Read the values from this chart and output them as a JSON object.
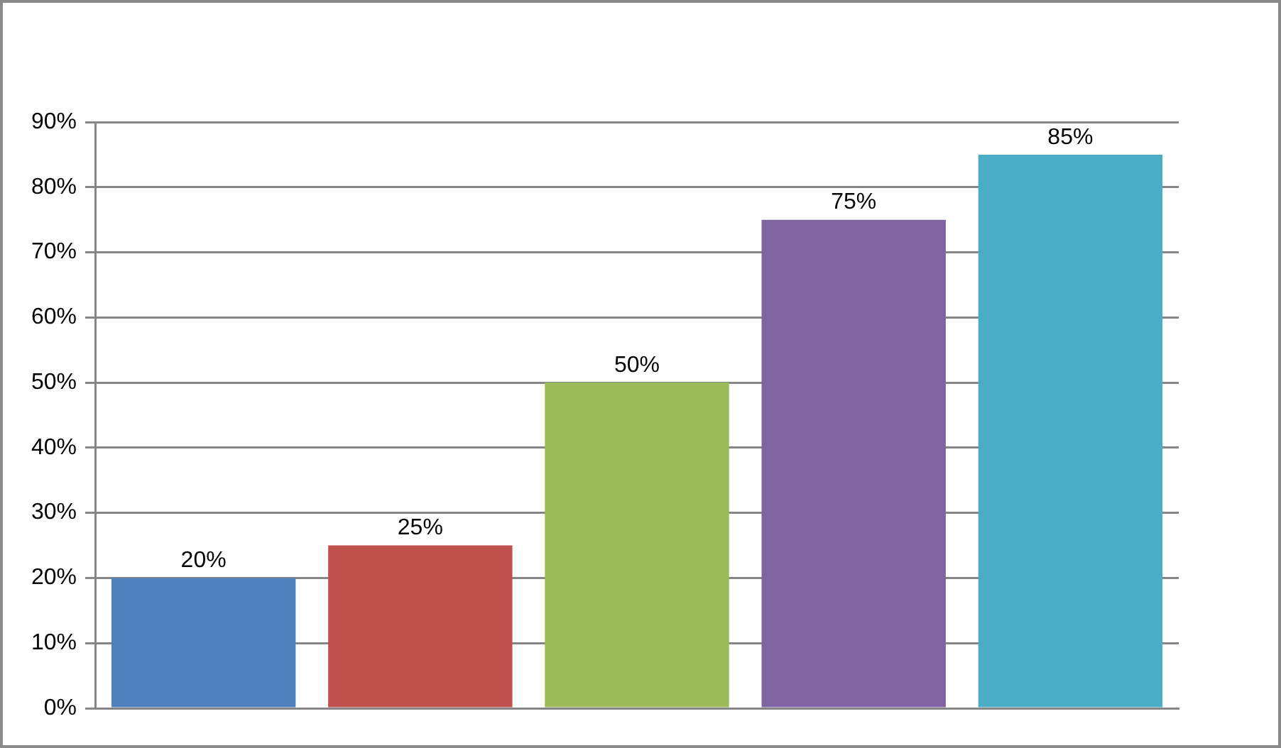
{
  "chart_data": {
    "type": "bar",
    "categories": [
      null,
      null,
      null,
      null,
      null
    ],
    "values": [
      20,
      25,
      50,
      75,
      85
    ],
    "colors": [
      "#4f81bd",
      "#c0504d",
      "#9bbb59",
      "#8064a2",
      "#4bacc6"
    ],
    "value_labels": [
      "20%",
      "25%",
      "50%",
      "75%",
      "85%"
    ],
    "ylim": [
      0,
      90
    ],
    "yticks": [
      {
        "value": 0,
        "label": "0%"
      },
      {
        "value": 10,
        "label": "10%"
      },
      {
        "value": 20,
        "label": "20%"
      },
      {
        "value": 30,
        "label": "30%"
      },
      {
        "value": 40,
        "label": "40%"
      },
      {
        "value": 50,
        "label": "50%"
      },
      {
        "value": 60,
        "label": "60%"
      },
      {
        "value": 70,
        "label": "70%"
      },
      {
        "value": 80,
        "label": "80%"
      },
      {
        "value": 90,
        "label": "90%"
      }
    ],
    "grid": "y"
  }
}
